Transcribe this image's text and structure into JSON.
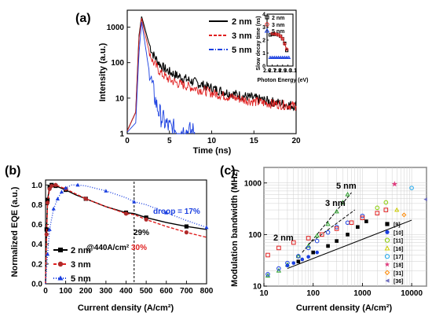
{
  "chart_data": [
    {
      "panel": "(a)",
      "type": "line",
      "xlabel": "Time (ns)",
      "ylabel": "Intensity (a.u.)",
      "xlim": [
        0,
        20
      ],
      "ylim": [
        1,
        3000
      ],
      "yscale": "log",
      "xticks": [
        "0",
        "5",
        "10",
        "15",
        "20"
      ],
      "yticks": [
        "1",
        "10",
        "100",
        "1000"
      ],
      "legend_position": "top-center",
      "series": [
        {
          "name": "2 nm",
          "color": "#000000",
          "style": "solid",
          "x": [
            0,
            1.0,
            1.4,
            1.7,
            2.0,
            2.5,
            3,
            4,
            5,
            6,
            8,
            10,
            12,
            15,
            17,
            20
          ],
          "y": [
            1.2,
            4,
            600,
            2000,
            1100,
            400,
            180,
            80,
            55,
            42,
            28,
            19,
            14,
            10,
            8,
            6
          ]
        },
        {
          "name": "3 nm",
          "color": "#e02020",
          "style": "dashed",
          "x": [
            0,
            1.0,
            1.4,
            1.7,
            2.0,
            2.5,
            3,
            4,
            5,
            6,
            8,
            10,
            12,
            15,
            17,
            20
          ],
          "y": [
            1.2,
            4,
            500,
            1800,
            800,
            260,
            110,
            50,
            33,
            26,
            19,
            14,
            11,
            8,
            7,
            6
          ]
        },
        {
          "name": "5 nm",
          "color": "#1a3fe0",
          "style": "dash-dot",
          "x": [
            0,
            1.0,
            1.4,
            1.7,
            2.0,
            2.5,
            3.0,
            3.5,
            4.0,
            4.5,
            5.0,
            6,
            8
          ],
          "y": [
            1.1,
            2,
            200,
            1400,
            500,
            80,
            20,
            6,
            3,
            2,
            1.5,
            1.2,
            1.1
          ]
        }
      ],
      "inset": {
        "type": "scatter",
        "xlabel": "Photon Energy (eV)",
        "ylabel": "Slow decay time (ns)",
        "xlim": [
          2.6,
          3.1
        ],
        "ylim": [
          0,
          4
        ],
        "xticks": [
          "2.6",
          "2.7",
          "2.8",
          "2.9",
          "3.0",
          "3.1"
        ],
        "yticks": [
          "0",
          "1",
          "2",
          "3",
          "4"
        ],
        "series": [
          {
            "name": "2 nm",
            "color": "#000000",
            "marker": "square",
            "x": [
              2.66,
              2.7,
              2.74,
              2.78,
              2.82,
              2.86,
              2.9,
              2.94,
              2.98
            ],
            "y": [
              2.4,
              2.45,
              2.45,
              2.45,
              2.4,
              2.3,
              2.1,
              1.75,
              1.2
            ]
          },
          {
            "name": "3 nm",
            "color": "#e02020",
            "marker": "circle",
            "x": [
              2.7,
              2.74,
              2.78,
              2.82,
              2.86,
              2.9,
              2.94,
              2.98
            ],
            "y": [
              2.5,
              2.5,
              2.45,
              2.4,
              2.3,
              2.1,
              1.7,
              1.3
            ]
          },
          {
            "name": "5 nm",
            "color": "#1a3fe0",
            "marker": "triangle",
            "x": [
              2.66,
              2.7,
              2.74,
              2.78,
              2.82,
              2.86,
              2.9,
              2.94,
              2.98,
              3.02
            ],
            "y": [
              0.65,
              0.65,
              0.65,
              0.65,
              0.65,
              0.65,
              0.65,
              0.65,
              0.65,
              0.65
            ]
          }
        ]
      }
    },
    {
      "panel": "(b)",
      "type": "line",
      "xlabel": "Current density (A/cm²)",
      "ylabel": "Normalized EQE (a.u.)",
      "xlim": [
        0,
        800
      ],
      "ylim": [
        0,
        1.05
      ],
      "xticks": [
        "0",
        "100",
        "200",
        "300",
        "400",
        "500",
        "600",
        "700",
        "800"
      ],
      "yticks": [
        "0.0",
        "0.2",
        "0.4",
        "0.6",
        "0.8",
        "1.0"
      ],
      "legend_position": "bottom-left",
      "annotations": {
        "droop": "droop = 17%",
        "p29": "29%",
        "p30": "30%",
        "at": "@440A/cm²"
      },
      "vline_x": 440,
      "series": [
        {
          "name": "2 nm",
          "color": "#000000",
          "marker": "square",
          "style": "solid",
          "x": [
            0,
            5,
            10,
            20,
            30,
            50,
            100,
            150,
            200,
            300,
            400,
            440,
            500,
            600,
            700,
            800
          ],
          "y": [
            0.0,
            0.55,
            0.85,
            0.98,
            1.0,
            0.99,
            0.95,
            0.9,
            0.86,
            0.78,
            0.72,
            0.71,
            0.67,
            0.62,
            0.58,
            0.55
          ]
        },
        {
          "name": "3 nm",
          "color": "#e02020",
          "marker": "circle",
          "style": "dashed",
          "x": [
            0,
            5,
            10,
            20,
            30,
            50,
            100,
            150,
            200,
            300,
            400,
            440,
            500,
            600,
            700,
            800
          ],
          "y": [
            0.0,
            0.5,
            0.82,
            0.96,
            0.99,
            1.0,
            0.96,
            0.91,
            0.86,
            0.78,
            0.71,
            0.7,
            0.65,
            0.58,
            0.52,
            0.47
          ]
        },
        {
          "name": "5 nm",
          "color": "#1a3fe0",
          "marker": "triangle",
          "style": "dotted",
          "x": [
            0,
            10,
            20,
            40,
            60,
            80,
            100,
            130,
            160,
            200,
            300,
            400,
            440,
            500,
            600,
            700,
            800
          ],
          "y": [
            0.0,
            0.3,
            0.55,
            0.76,
            0.86,
            0.93,
            0.97,
            1.0,
            1.0,
            0.99,
            0.94,
            0.87,
            0.83,
            0.8,
            0.72,
            0.64,
            0.57
          ]
        }
      ]
    },
    {
      "panel": "(c)",
      "type": "scatter",
      "xlabel": "Current density (A/cm²)",
      "ylabel": "Modulation bandwidth (MHz)",
      "xlim": [
        10,
        20000
      ],
      "ylim": [
        10,
        2000
      ],
      "xscale": "log",
      "yscale": "log",
      "xticks": [
        "10",
        "100",
        "1000",
        "10000"
      ],
      "yticks": [
        "10",
        "100",
        "1000"
      ],
      "line_labels": [
        "5 nm",
        "3 nm",
        "2 nm"
      ],
      "legend": [
        {
          "name": "[9]",
          "color": "#000000",
          "marker": "square"
        },
        {
          "name": "[10]",
          "color": "#1a3fe0",
          "marker": "circle"
        },
        {
          "name": "[11]",
          "color": "#88cc00",
          "marker": "circle-open"
        },
        {
          "name": "[16]",
          "color": "#cccc00",
          "marker": "triangle-open"
        },
        {
          "name": "[17]",
          "color": "#22aaee",
          "marker": "circle-open"
        },
        {
          "name": "[18]",
          "color": "#e04080",
          "marker": "star"
        },
        {
          "name": "[31]",
          "color": "#ff8800",
          "marker": "diamond-open"
        },
        {
          "name": "[36]",
          "color": "#7070c0",
          "marker": "triangle-left"
        }
      ],
      "series": [
        {
          "name": "5 nm",
          "color": "#2ea02e",
          "x": [
            12,
            20,
            30,
            50,
            80,
            120,
            200,
            300,
            400,
            500
          ],
          "y": [
            16,
            20,
            26,
            38,
            60,
            95,
            160,
            280,
            420,
            600
          ]
        },
        {
          "name": "3 nm",
          "color": "#1a3fe0",
          "x": [
            12,
            20,
            30,
            50,
            80,
            120,
            200,
            300,
            500,
            1000
          ],
          "y": [
            17,
            22,
            28,
            38,
            55,
            75,
            110,
            140,
            170,
            230
          ]
        },
        {
          "name": "2 nm",
          "color": "#e02020",
          "x": [
            12,
            20,
            40,
            80,
            150,
            300,
            600,
            1000,
            2000,
            3000
          ],
          "y": [
            40,
            55,
            70,
            85,
            100,
            130,
            170,
            210,
            260,
            300
          ]
        },
        {
          "name": "[9]",
          "color": "#000000",
          "x": [
            50,
            100,
            200,
            300,
            500,
            800,
            1200
          ],
          "y": [
            30,
            45,
            60,
            75,
            100,
            140,
            180
          ]
        },
        {
          "name": "[10]",
          "color": "#1a3fe0",
          "x": [
            30,
            40,
            60,
            80,
            120
          ],
          "y": [
            25,
            28,
            33,
            37,
            45
          ]
        },
        {
          "name": "[11]",
          "color": "#88cc00",
          "x": [
            2000,
            3000
          ],
          "y": [
            330,
            420
          ]
        },
        {
          "name": "[16]",
          "color": "#cccc00",
          "x": [
            5000
          ],
          "y": [
            300
          ]
        },
        {
          "name": "[17]",
          "color": "#22aaee",
          "x": [
            10000
          ],
          "y": [
            800
          ]
        },
        {
          "name": "[18]",
          "color": "#e04080",
          "x": [
            4500
          ],
          "y": [
            950
          ]
        },
        {
          "name": "[31]",
          "color": "#ff8800",
          "x": [
            7000
          ],
          "y": [
            240
          ]
        },
        {
          "name": "[36]",
          "color": "#7070c0",
          "x": [
            19000
          ],
          "y": [
            480
          ]
        }
      ]
    }
  ]
}
